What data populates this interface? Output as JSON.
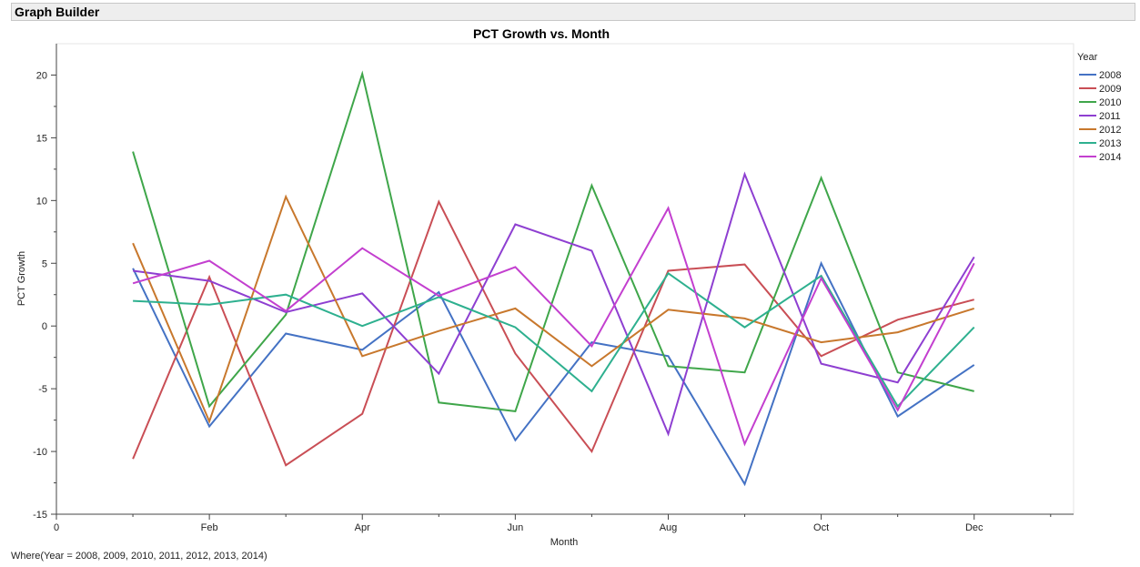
{
  "app": {
    "title": "Graph Builder"
  },
  "footer": {
    "where": "Where(Year = 2008, 2009, 2010, 2011, 2012, 2013, 2014)"
  },
  "chart_data": {
    "type": "line",
    "title": "PCT Growth vs. Month",
    "xlabel": "Month",
    "ylabel": "PCT Growth",
    "x": [
      1,
      2,
      3,
      4,
      5,
      6,
      7,
      8,
      9,
      10,
      11,
      12
    ],
    "x_tick_positions": [
      0,
      2,
      4,
      6,
      8,
      10,
      12
    ],
    "x_tick_labels": [
      "0",
      "Feb",
      "Apr",
      "Jun",
      "Aug",
      "Oct",
      "Dec"
    ],
    "xlim": [
      0,
      13.3
    ],
    "ylim": [
      -15,
      22.5
    ],
    "y_ticks": [
      -15,
      -10,
      -5,
      0,
      5,
      10,
      15,
      20
    ],
    "y_tick_labels": [
      "-15",
      "-10",
      "-5",
      "0",
      "5",
      "10",
      "15",
      "20"
    ],
    "grid": false,
    "legend": {
      "title": "Year",
      "position": "right"
    },
    "series": [
      {
        "name": "2008",
        "color": "#4472c4",
        "values": [
          4.6,
          -8.0,
          -0.6,
          -1.9,
          2.7,
          -9.1,
          -1.3,
          -2.4,
          -12.6,
          5.0,
          -7.2,
          -3.1
        ]
      },
      {
        "name": "2009",
        "color": "#c94e55",
        "values": [
          -10.6,
          3.9,
          -11.1,
          -7.0,
          9.9,
          -2.2,
          -10.0,
          4.4,
          4.9,
          -2.4,
          0.5,
          2.1
        ]
      },
      {
        "name": "2010",
        "color": "#3fa64a",
        "values": [
          13.9,
          -6.4,
          0.9,
          20.1,
          -6.1,
          -6.8,
          11.2,
          -3.2,
          -3.7,
          11.8,
          -3.7,
          -5.2
        ]
      },
      {
        "name": "2011",
        "color": "#8e3fd1",
        "values": [
          4.4,
          3.6,
          1.1,
          2.6,
          -3.8,
          8.1,
          6.0,
          -8.6,
          12.1,
          -3.0,
          -4.5,
          5.5
        ]
      },
      {
        "name": "2012",
        "color": "#c8782d",
        "values": [
          6.6,
          -7.6,
          10.3,
          -2.4,
          -0.4,
          1.4,
          -3.2,
          1.3,
          0.6,
          -1.3,
          -0.5,
          1.4
        ]
      },
      {
        "name": "2013",
        "color": "#2eb08f",
        "values": [
          2.0,
          1.7,
          2.5,
          0.0,
          2.3,
          -0.1,
          -5.2,
          4.2,
          -0.1,
          4.0,
          -6.4,
          -0.1
        ]
      },
      {
        "name": "2014",
        "color": "#c33fcf",
        "values": [
          3.4,
          5.2,
          1.2,
          6.2,
          2.4,
          4.7,
          -1.6,
          9.4,
          -9.4,
          3.8,
          -6.7,
          5.0
        ]
      }
    ]
  }
}
